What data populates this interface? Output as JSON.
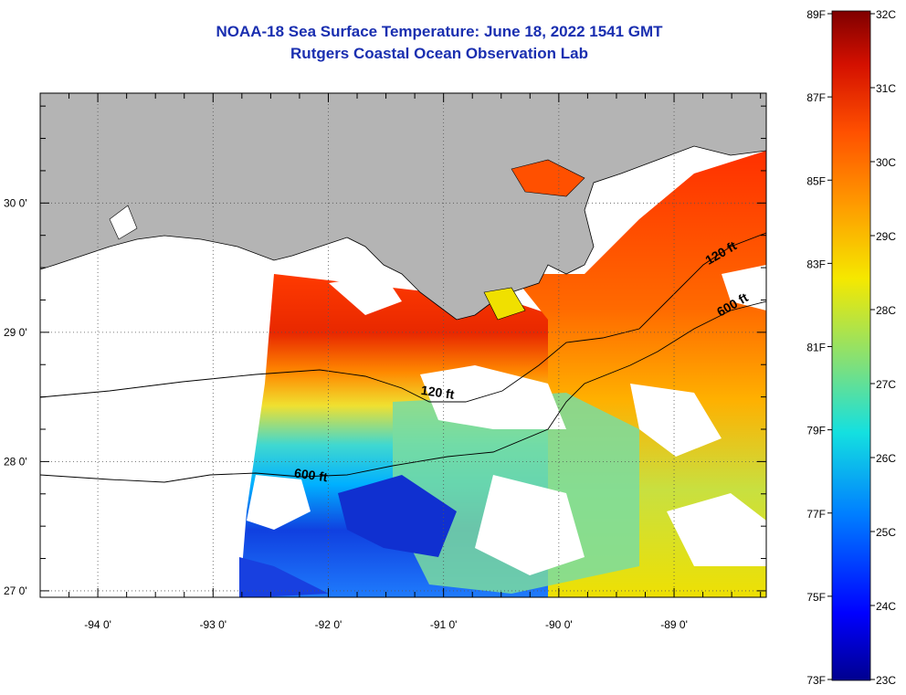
{
  "title": "NOAA-18 Sea Surface Temperature:  June 18, 2022 1541 GMT",
  "subtitle": "Rutgers Coastal Ocean Observation Lab",
  "map": {
    "lon_range": [
      -94.5,
      -88.2
    ],
    "lat_range": [
      26.95,
      30.85
    ],
    "lon_ticks": [
      {
        "value": -94,
        "label": "-94 0'"
      },
      {
        "value": -93,
        "label": "-93 0'"
      },
      {
        "value": -92,
        "label": "-92 0'"
      },
      {
        "value": -91,
        "label": "-91 0'"
      },
      {
        "value": -90,
        "label": "-90 0'"
      },
      {
        "value": -89,
        "label": "-89 0'"
      }
    ],
    "lat_ticks": [
      {
        "value": 30,
        "label": "30 0'"
      },
      {
        "value": 29,
        "label": "29 0'"
      },
      {
        "value": 28,
        "label": "28 0'"
      },
      {
        "value": 27,
        "label": "27 0'"
      }
    ],
    "contour_labels": [
      {
        "text": "120 ft",
        "lon": -91.2,
        "lat": 28.52
      },
      {
        "text": "600 ft",
        "lon": -92.3,
        "lat": 27.88
      },
      {
        "text": "120 ft",
        "lon": -88.7,
        "lat": 29.52
      },
      {
        "text": "600 ft",
        "lon": -88.6,
        "lat": 29.12
      }
    ],
    "land_color": "#b4b4b4"
  },
  "colorbar": {
    "celsius_labels": [
      "32C",
      "31C",
      "30C",
      "29C",
      "28C",
      "27C",
      "26C",
      "25C",
      "24C",
      "23C"
    ],
    "fahrenheit_labels": [
      "89F",
      "87F",
      "85F",
      "83F",
      "81F",
      "79F",
      "77F",
      "75F",
      "73F"
    ],
    "range_c": [
      23,
      32
    ],
    "range_f": [
      73,
      89
    ],
    "colors": [
      "#7f0000",
      "#d41000",
      "#ff5000",
      "#ff9400",
      "#f5e800",
      "#7de07d",
      "#14e0e0",
      "#0080ff",
      "#0000ff",
      "#00008f"
    ]
  }
}
